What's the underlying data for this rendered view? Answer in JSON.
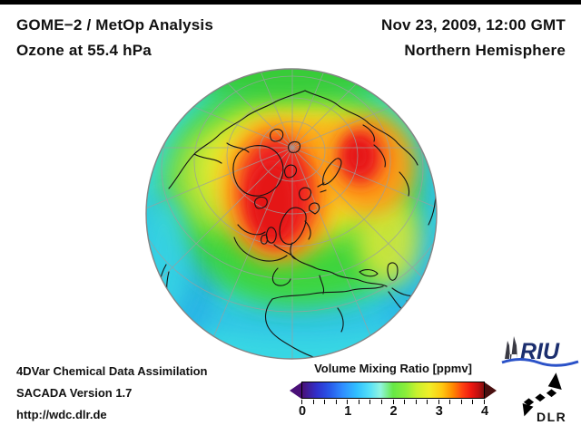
{
  "frame": {
    "background": "#ffffff",
    "top_bar_color": "#000000"
  },
  "header": {
    "left": {
      "line1": "GOME−2 / MetOp Analysis",
      "line2": "Ozone at 55.4 hPa"
    },
    "right": {
      "line1": "Nov 23, 2009, 12:00 GMT",
      "line2": "Northern Hemisphere"
    }
  },
  "footer": {
    "line1": "4DVar Chemical Data Assimilation",
    "line2": "SACADA Version 1.7",
    "line3": "http://wdc.dlr.de"
  },
  "colorbar": {
    "title": "Volume Mixing Ratio [ppmv]",
    "tick_labels": [
      "0",
      "1",
      "2",
      "3",
      "4"
    ],
    "range": [
      0,
      4
    ],
    "minor_tick_step": 0.25,
    "left_arrow_color": "#4a1078",
    "right_arrow_color": "#4a1010",
    "gradient_stops": [
      [
        "0%",
        "#4a1078"
      ],
      [
        "8%",
        "#3030cc"
      ],
      [
        "15%",
        "#2858e8"
      ],
      [
        "22%",
        "#2f8cff"
      ],
      [
        "30%",
        "#30c0ff"
      ],
      [
        "37%",
        "#55e0f8"
      ],
      [
        "43%",
        "#90f4e0"
      ],
      [
        "50%",
        "#66e846"
      ],
      [
        "57%",
        "#8aee3a"
      ],
      [
        "63%",
        "#c8f02e"
      ],
      [
        "70%",
        "#f0ee28"
      ],
      [
        "77%",
        "#ffc810"
      ],
      [
        "83%",
        "#ff8800"
      ],
      [
        "88%",
        "#ff4410"
      ],
      [
        "93%",
        "#ee1810"
      ],
      [
        "97%",
        "#c01010"
      ],
      [
        "100%",
        "#801010"
      ]
    ]
  },
  "globe": {
    "projection": "orthographic, Northern Hemisphere, pole near top-center",
    "palette": {
      "ocean_low": "#38d8e4",
      "blue_band": "#28aae6",
      "blue_band2": "#2ab2e6",
      "green": "#3cd53c",
      "green_limb": "#38cc38",
      "yellow": "#eeee2e",
      "yellow_soft": "#e8e838",
      "orange": "#ff9418",
      "red": "#ee2020",
      "red_core": "#e51515",
      "coastline": "#141414",
      "graticule": "#9aa0a0",
      "rim": "#858585"
    }
  },
  "chart_data": {
    "type": "heatmap",
    "title": "GOME−2 / MetOp Analysis — Ozone at 55.4 hPa",
    "timestamp": "Nov 23, 2009, 12:00 GMT",
    "region": "Northern Hemisphere",
    "colorbar_label": "Volume Mixing Ratio [ppmv]",
    "value_range_ppmv": [
      0,
      4
    ],
    "features": [
      {
        "region": "Canadian Arctic / Greenland maximum",
        "value_ppmv": 3.6,
        "color": "red"
      },
      {
        "region": "Siberia secondary maximum",
        "value_ppmv": 3.2,
        "color": "orange-red"
      },
      {
        "region": "North Pole vicinity",
        "value_ppmv": 2.7,
        "color": "yellow"
      },
      {
        "region": "Mid-latitudes / Europe",
        "value_ppmv": 2.0,
        "color": "green"
      },
      {
        "region": "High-Arctic limb band",
        "value_ppmv": 2.0,
        "color": "green"
      },
      {
        "region": "Subtropics / Africa",
        "value_ppmv": 1.3,
        "color": "cyan"
      },
      {
        "region": "Tropical limb",
        "value_ppmv": 1.0,
        "color": "blue-cyan"
      }
    ]
  },
  "logos": {
    "riu": {
      "text": "RIU",
      "text_color": "#1b2e6e",
      "wave_color": "#2b52c8",
      "cathedral_color": "#3a3a44"
    },
    "dlr": {
      "text": "DLR",
      "color": "#000000"
    }
  }
}
